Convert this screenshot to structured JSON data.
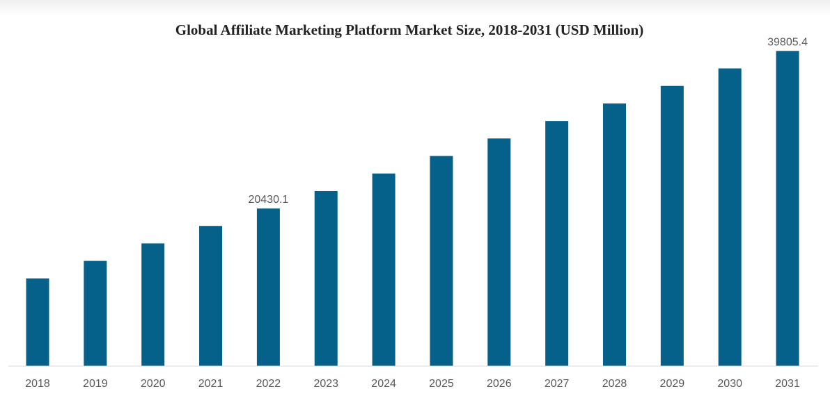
{
  "chart_data": {
    "type": "bar",
    "title": "Global Affiliate Marketing Platform Market Size, 2018-2031 (USD Million)",
    "xlabel": "",
    "ylabel": "",
    "categories": [
      "2018",
      "2019",
      "2020",
      "2021",
      "2022",
      "2023",
      "2024",
      "2025",
      "2026",
      "2027",
      "2028",
      "2029",
      "2030",
      "2031"
    ],
    "values": [
      11840,
      13990,
      16140,
      18290,
      20430.1,
      22583,
      24736,
      26889,
      29042,
      31195,
      33348,
      35500,
      37653,
      39805.4
    ],
    "data_labels": {
      "2022": "20430.1",
      "2031": "39805.4"
    },
    "ylim": [
      1100,
      39805.4
    ],
    "grid": false,
    "legend": "none",
    "bar_color": "#05618a",
    "axis_color": "#d9d9d9",
    "label_color": "#595959"
  }
}
